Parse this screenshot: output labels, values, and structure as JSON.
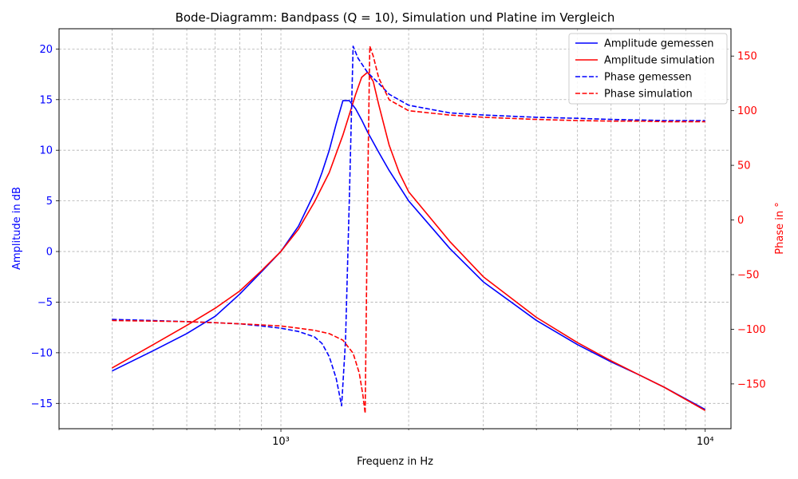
{
  "chart_data": {
    "type": "line",
    "title": "Bode-Diagramm: Bandpass (Q = 10), Simulation und Platine im Vergleich",
    "xlabel": "Frequenz in Hz",
    "ylabel_left": "Amplitude in dB",
    "ylabel_right": "Phase in °",
    "x_scale": "log",
    "xlim": [
      300,
      11500
    ],
    "ylim_left": [
      -17.5,
      22
    ],
    "ylim_right": [
      -191,
      175
    ],
    "x_ticks": [
      {
        "value": 1000,
        "label": "10³"
      },
      {
        "value": 10000,
        "label": "10⁴"
      }
    ],
    "y_ticks_left": [
      -15,
      -10,
      -5,
      0,
      5,
      10,
      15,
      20
    ],
    "y_ticks_right": [
      -150,
      -100,
      -50,
      0,
      50,
      100,
      150
    ],
    "grid": true,
    "legend_position": "top-right",
    "colors": {
      "measured": "#0000ff",
      "simulation": "#ff0000",
      "left_axis": "#0000ff",
      "right_axis": "#ff0000"
    },
    "series": [
      {
        "name": "Amplitude gemessen",
        "axis": "left",
        "style": "solid",
        "color": "#0000ff",
        "points": [
          [
            400,
            -11.8
          ],
          [
            500,
            -9.8
          ],
          [
            600,
            -8.1
          ],
          [
            700,
            -6.4
          ],
          [
            800,
            -4.2
          ],
          [
            900,
            -2.0
          ],
          [
            1000,
            0.0
          ],
          [
            1100,
            2.5
          ],
          [
            1200,
            5.8
          ],
          [
            1250,
            7.8
          ],
          [
            1300,
            10.0
          ],
          [
            1350,
            12.6
          ],
          [
            1400,
            14.9
          ],
          [
            1450,
            14.9
          ],
          [
            1500,
            14.1
          ],
          [
            1550,
            13.0
          ],
          [
            1600,
            11.8
          ],
          [
            1700,
            9.8
          ],
          [
            1800,
            8.0
          ],
          [
            2000,
            5.0
          ],
          [
            2500,
            0.3
          ],
          [
            3000,
            -3.0
          ],
          [
            4000,
            -6.8
          ],
          [
            5000,
            -9.2
          ],
          [
            6000,
            -10.9
          ],
          [
            7000,
            -12.2
          ],
          [
            8000,
            -13.4
          ],
          [
            10000,
            -15.6
          ]
        ]
      },
      {
        "name": "Amplitude simulation",
        "axis": "left",
        "style": "solid",
        "color": "#ff0000",
        "points": [
          [
            400,
            -11.5
          ],
          [
            500,
            -9.2
          ],
          [
            600,
            -7.3
          ],
          [
            700,
            -5.6
          ],
          [
            800,
            -3.9
          ],
          [
            900,
            -1.9
          ],
          [
            1000,
            0.0
          ],
          [
            1100,
            2.2
          ],
          [
            1200,
            4.9
          ],
          [
            1300,
            7.8
          ],
          [
            1400,
            11.5
          ],
          [
            1500,
            15.5
          ],
          [
            1550,
            17.2
          ],
          [
            1600,
            17.7
          ],
          [
            1650,
            16.8
          ],
          [
            1700,
            14.5
          ],
          [
            1800,
            10.5
          ],
          [
            1900,
            7.8
          ],
          [
            2000,
            5.9
          ],
          [
            2500,
            1.0
          ],
          [
            3000,
            -2.5
          ],
          [
            4000,
            -6.5
          ],
          [
            5000,
            -9.0
          ],
          [
            6000,
            -10.8
          ],
          [
            7000,
            -12.2
          ],
          [
            8000,
            -13.4
          ],
          [
            10000,
            -15.7
          ]
        ]
      },
      {
        "name": "Phase gemessen",
        "axis": "right",
        "style": "dashed",
        "color": "#0000ff",
        "points": [
          [
            400,
            -91
          ],
          [
            500,
            -92
          ],
          [
            600,
            -93
          ],
          [
            700,
            -94
          ],
          [
            800,
            -95
          ],
          [
            900,
            -97
          ],
          [
            1000,
            -99
          ],
          [
            1100,
            -102
          ],
          [
            1200,
            -107
          ],
          [
            1250,
            -113
          ],
          [
            1300,
            -125
          ],
          [
            1350,
            -145
          ],
          [
            1390,
            -170
          ],
          [
            1420,
            -110
          ],
          [
            1450,
            20
          ],
          [
            1480,
            159
          ],
          [
            1520,
            148
          ],
          [
            1600,
            135
          ],
          [
            1700,
            125
          ],
          [
            1800,
            115
          ],
          [
            2000,
            105
          ],
          [
            2500,
            98
          ],
          [
            3000,
            96
          ],
          [
            4000,
            94
          ],
          [
            5000,
            93
          ],
          [
            6000,
            92
          ],
          [
            7000,
            91.5
          ],
          [
            8000,
            91
          ],
          [
            10000,
            91
          ]
        ]
      },
      {
        "name": "Phase simulation",
        "axis": "right",
        "style": "dashed",
        "color": "#ff0000",
        "points": [
          [
            400,
            -92
          ],
          [
            500,
            -92.5
          ],
          [
            600,
            -93
          ],
          [
            700,
            -94
          ],
          [
            800,
            -95
          ],
          [
            900,
            -96
          ],
          [
            1000,
            -97
          ],
          [
            1100,
            -99
          ],
          [
            1200,
            -101
          ],
          [
            1300,
            -104
          ],
          [
            1400,
            -110
          ],
          [
            1480,
            -122
          ],
          [
            1530,
            -140
          ],
          [
            1560,
            -160
          ],
          [
            1580,
            -177
          ],
          [
            1600,
            20
          ],
          [
            1620,
            159
          ],
          [
            1650,
            150
          ],
          [
            1700,
            130
          ],
          [
            1800,
            110
          ],
          [
            2000,
            100
          ],
          [
            2500,
            96
          ],
          [
            3000,
            94
          ],
          [
            4000,
            92
          ],
          [
            5000,
            91
          ],
          [
            6000,
            90.5
          ],
          [
            7000,
            90.5
          ],
          [
            8000,
            90
          ],
          [
            10000,
            90
          ]
        ]
      }
    ]
  }
}
